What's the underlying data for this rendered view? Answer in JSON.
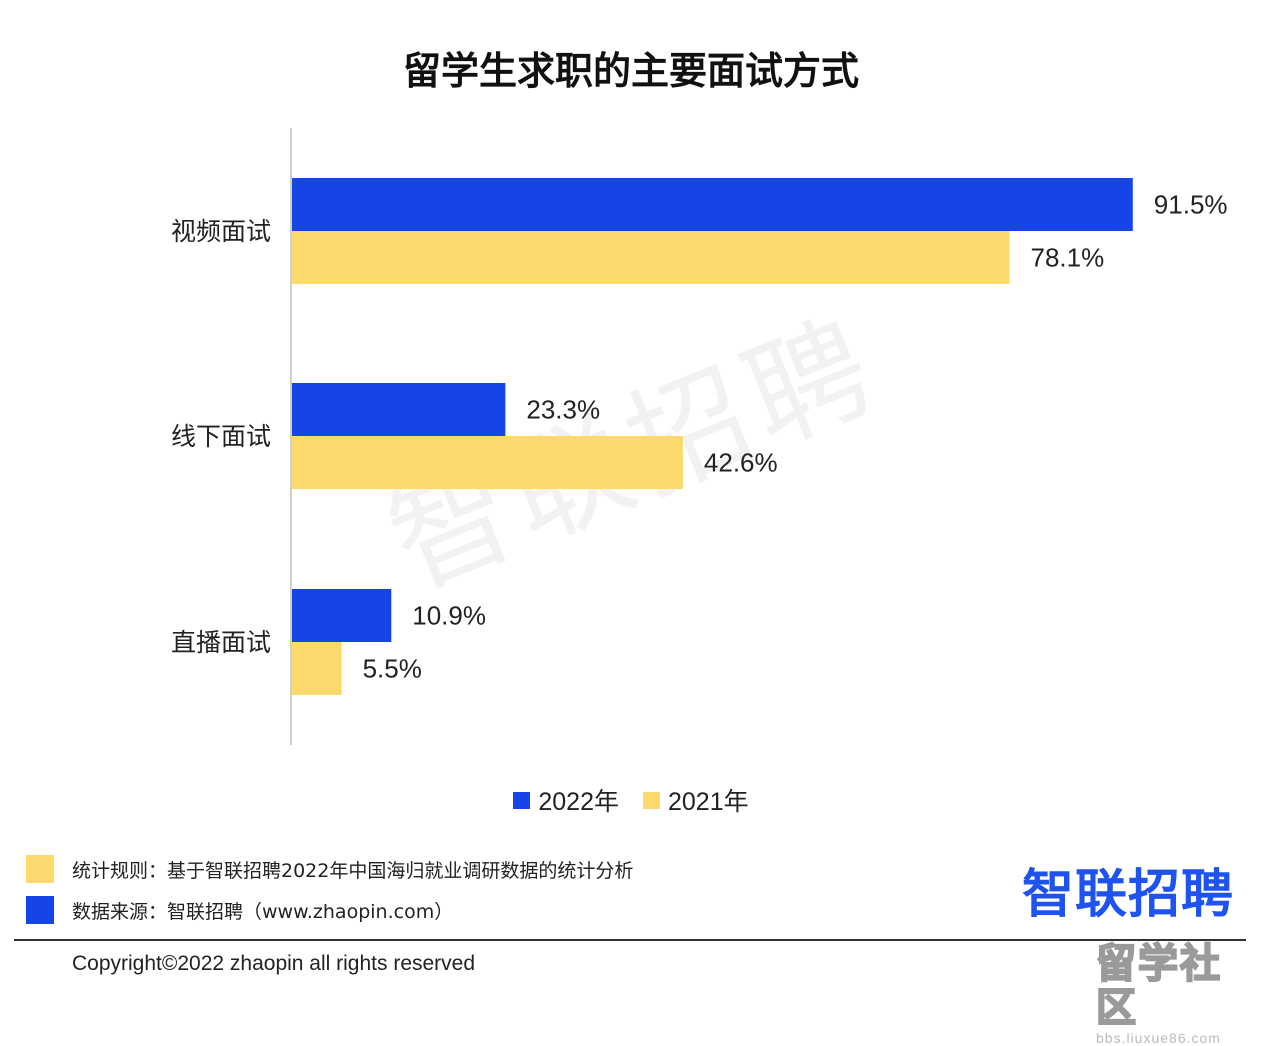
{
  "title": "留学生求职的主要面试方式",
  "watermark": "智联招聘",
  "chart_data": {
    "type": "bar",
    "orientation": "horizontal",
    "categories": [
      "视频面试",
      "线下面试",
      "直播面试"
    ],
    "series": [
      {
        "name": "2022年",
        "color": "#1545e6",
        "values": [
          91.5,
          23.3,
          10.9
        ],
        "labels": [
          "91.5%",
          "23.3%",
          "10.9%"
        ]
      },
      {
        "name": "2021年",
        "color": "#fcd96c",
        "values": [
          78.1,
          42.6,
          5.5
        ],
        "labels": [
          "78.1%",
          "42.6%",
          "5.5%"
        ]
      }
    ],
    "xlim": [
      0,
      100
    ],
    "grid": false,
    "legend_position": "bottom"
  },
  "notes": {
    "rule": "统计规则：基于智联招聘2022年中国海归就业调研数据的统计分析",
    "rule_color": "#fcd96c",
    "source": "数据来源：智联招聘（www.zhaopin.com）",
    "source_color": "#1545e6"
  },
  "logo": "智联招聘",
  "logo_color": "#1e53f0",
  "copyright": "Copyright©2022 zhaopin all rights reserved",
  "forum": {
    "name": "留学社区",
    "url": "bbs.liuxue86.com"
  }
}
